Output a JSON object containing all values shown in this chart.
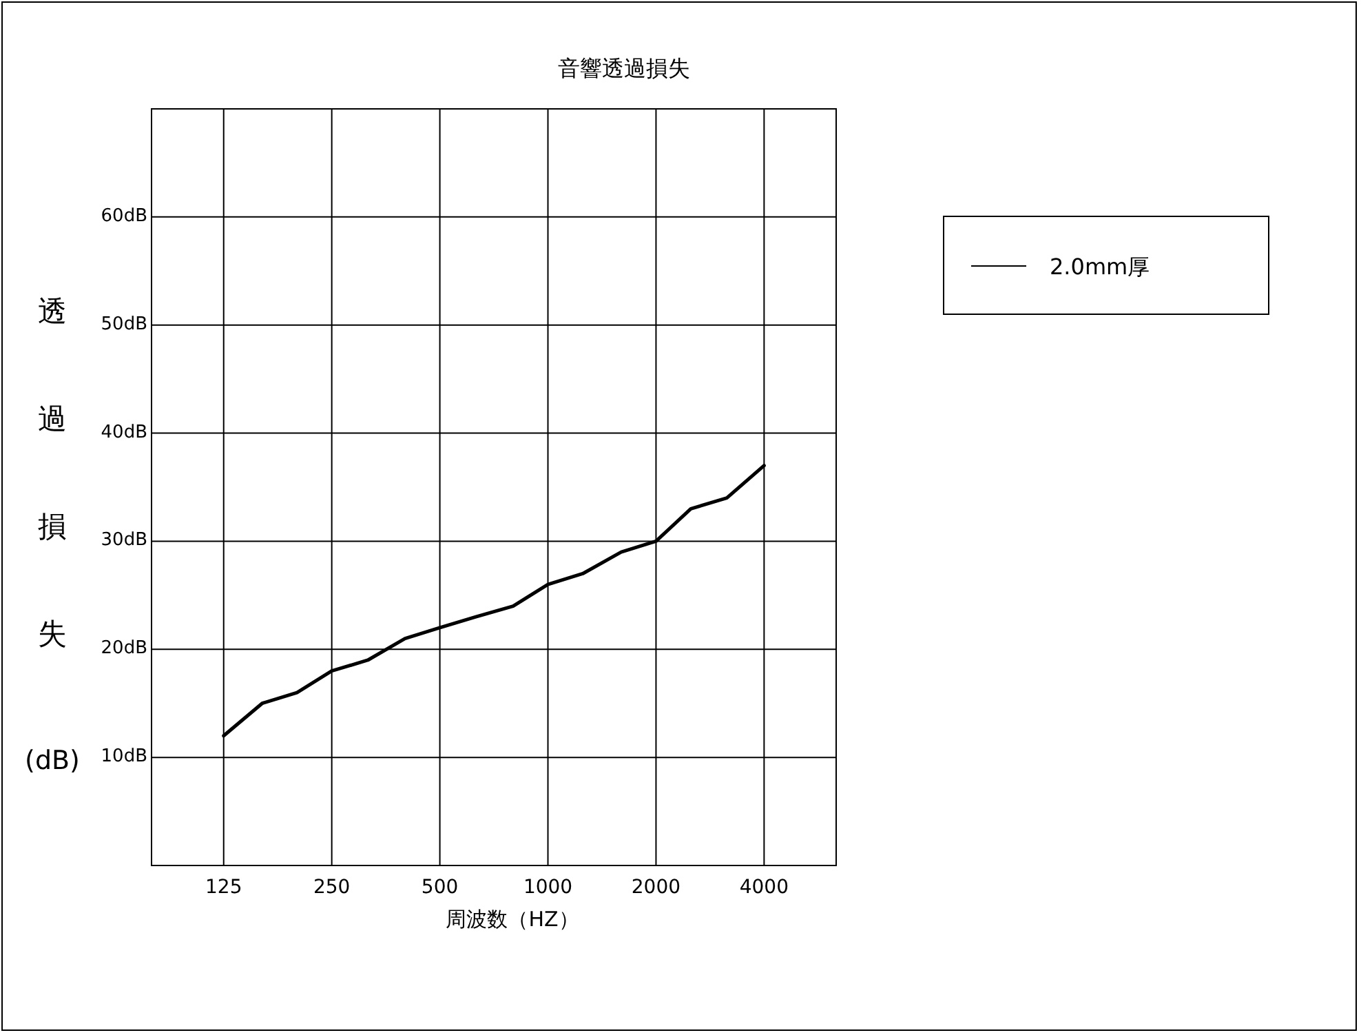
{
  "chart_data": {
    "type": "line",
    "title": "音響透過損失",
    "xlabel": "周波数（HZ）",
    "ylabel": "透過損失(dB)",
    "log": "x",
    "xlim": [
      78.7,
      6350
    ],
    "xticks": [
      125,
      250,
      500,
      1000,
      2000,
      4000
    ],
    "ylim": [
      0,
      70
    ],
    "yticks": [
      {
        "value": 0,
        "label": null
      },
      {
        "value": 10,
        "label": "10dB"
      },
      {
        "value": 20,
        "label": "20dB"
      },
      {
        "value": 30,
        "label": "30dB"
      },
      {
        "value": 40,
        "label": "40dB"
      },
      {
        "value": 50,
        "label": "50dB"
      },
      {
        "value": 60,
        "label": "60dB"
      },
      {
        "value": 70,
        "label": null
      }
    ],
    "grid": true,
    "legend": "right",
    "marker": "none",
    "line_style": "solid",
    "series": [
      {
        "name": "2.0mm厚",
        "color": "#000000",
        "x": [
          125,
          160,
          200,
          250,
          315,
          400,
          500,
          630,
          800,
          1000,
          1250,
          1600,
          2000,
          2500,
          3150,
          4000
        ],
        "values": [
          12,
          15,
          16,
          18,
          19,
          21,
          22,
          23,
          24,
          26,
          27,
          29,
          30,
          33,
          34,
          37
        ]
      }
    ]
  }
}
